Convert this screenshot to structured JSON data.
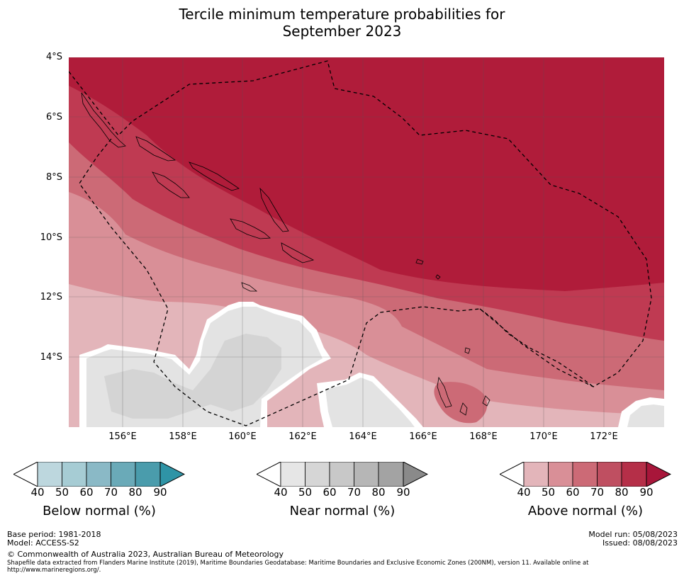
{
  "title": {
    "line1": "Tercile minimum temperature probabilities for",
    "line2": "September 2023"
  },
  "map": {
    "lat_labels": [
      "4°S",
      "6°S",
      "8°S",
      "10°S",
      "12°S",
      "14°S"
    ],
    "lon_labels": [
      "156°E",
      "158°E",
      "160°E",
      "162°E",
      "164°E",
      "166°E",
      "168°E",
      "170°E",
      "172°E"
    ],
    "colors": {
      "above_90": "#b01c3a",
      "above_80": "#bf3a52",
      "above_70": "#cc6a76",
      "above_60": "#d98f97",
      "above_50": "#e3b5ba",
      "near_50": "#e3e3e3",
      "near_60": "#d4d4d4"
    }
  },
  "colorbars": [
    {
      "name": "below",
      "title": "Below normal (%)",
      "ticks": [
        "40",
        "50",
        "60",
        "70",
        "80",
        "90"
      ],
      "colors": [
        "#ffffff",
        "#bdd7de",
        "#a6ccd4",
        "#8ab9c6",
        "#6aaab8",
        "#4a9cac",
        "#2f94a6"
      ]
    },
    {
      "name": "near",
      "title": "Near normal (%)",
      "ticks": [
        "40",
        "50",
        "60",
        "70",
        "80",
        "90"
      ],
      "colors": [
        "#ffffff",
        "#e6e6e6",
        "#d6d6d6",
        "#c8c8c8",
        "#b6b6b6",
        "#a3a3a3",
        "#8a8a8a"
      ]
    },
    {
      "name": "above",
      "title": "Above normal (%)",
      "ticks": [
        "40",
        "50",
        "60",
        "70",
        "80",
        "90"
      ],
      "colors": [
        "#ffffff",
        "#e3b5ba",
        "#d98f97",
        "#cc6a76",
        "#bf4f61",
        "#b52f48",
        "#a8163a"
      ]
    }
  ],
  "footer": {
    "base_period": "Base period: 1981-2018",
    "model": "Model: ACCESS-S2",
    "model_run": "Model run: 05/08/2023",
    "issued": "Issued: 08/08/2023",
    "copyright": "© Commonwealth of Australia 2023, Australian Bureau of Meteorology",
    "shapefile_line1": "Shapefile data extracted from Flanders Marine Institute (2019), Maritime Boundaries Geodatabase: Maritime Boundaries and Exclusive Economic Zones (200NM), version 11. Available online at",
    "shapefile_line2": "http://www.marineregions.org/."
  }
}
